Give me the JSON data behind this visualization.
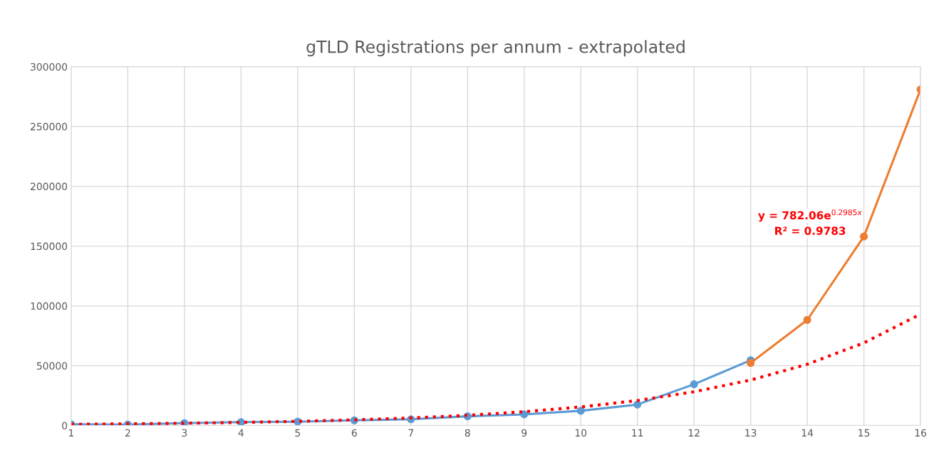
{
  "chart_data": {
    "type": "line",
    "title": "gTLD Registrations per annum - extrapolated",
    "xlim": [
      1,
      16
    ],
    "xticks": [
      1,
      2,
      3,
      4,
      5,
      6,
      7,
      8,
      9,
      10,
      11,
      12,
      13,
      14,
      15,
      16
    ],
    "ylim": [
      0,
      300000
    ],
    "yticks": [
      0,
      50000,
      100000,
      150000,
      200000,
      250000,
      300000
    ],
    "grid": true,
    "marker": "circle",
    "series": [
      {
        "color": "#5b9bd5",
        "x": [
          1,
          2,
          3,
          4,
          5,
          6,
          7,
          8,
          9,
          10,
          11,
          12,
          13
        ],
        "values": [
          1000,
          800,
          2000,
          2800,
          3200,
          4300,
          5200,
          7700,
          9300,
          12300,
          17500,
          34500,
          54600
        ]
      },
      {
        "color": "#ed7d31",
        "x": [
          13,
          14,
          15,
          16
        ],
        "values": [
          52300,
          88300,
          158000,
          281000
        ]
      },
      {
        "color": "#ff0000",
        "marker": "none",
        "line_style": "dotted",
        "x": [
          1,
          2,
          3,
          4,
          5,
          6,
          7,
          8,
          9,
          10,
          11,
          12,
          13,
          14,
          15,
          16
        ],
        "values": [
          1000,
          1400,
          1900,
          2600,
          3500,
          4700,
          6300,
          8500,
          11500,
          15500,
          20900,
          28200,
          38000,
          51200,
          69100,
          93100
        ]
      }
    ],
    "annotations": [
      "y = 782.06e$^{0.2985x}$",
      "R² = 0.9783"
    ]
  }
}
